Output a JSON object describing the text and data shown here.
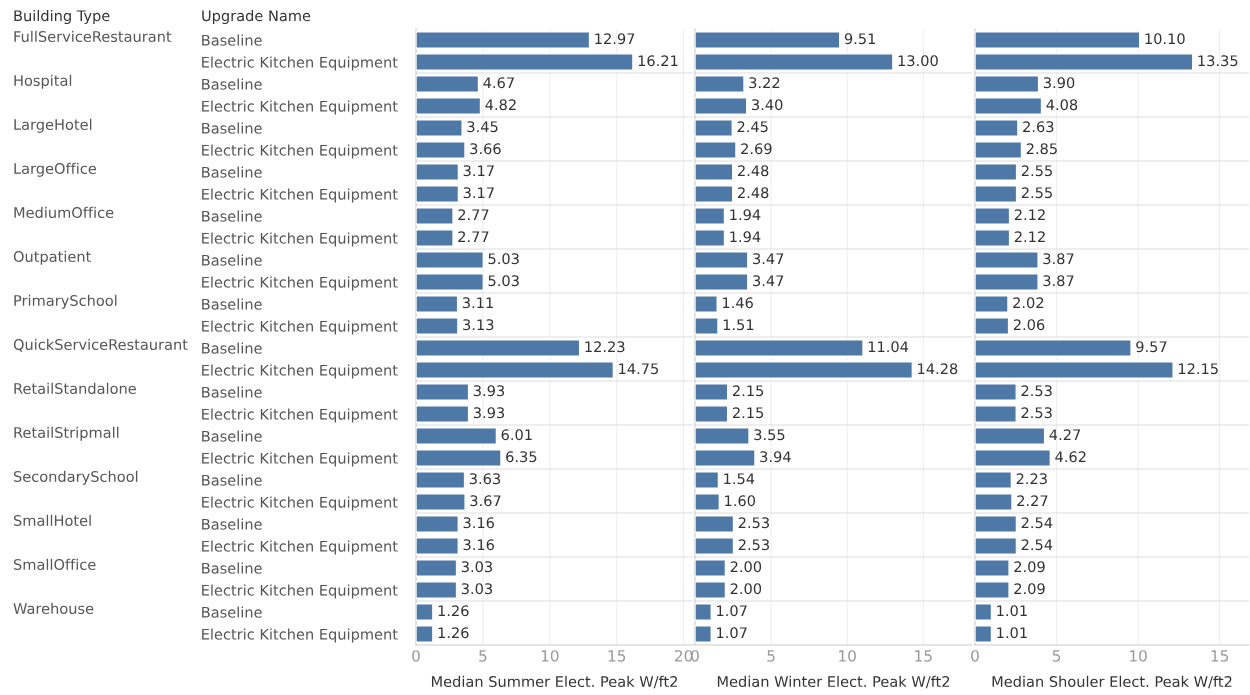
{
  "chart_data": [
    {
      "type": "bar",
      "orientation": "horizontal",
      "ylabel": "Upgrade Name",
      "xlabel": "Median Summer Elect. Peak W/ft2",
      "annotations": [
        "Building Type",
        "FullServiceRestaurant",
        "Hospital",
        "LargeHotel",
        "LargeOffice",
        "MediumOffice",
        "Outpatient",
        "PrimarySchool",
        "QuickServiceRestaurant",
        "RetailStandalone",
        "RetailStripmall",
        "SecondarySchool",
        "SmallHotel",
        "SmallOffice",
        "Warehouse"
      ],
      "categories": [
        "Baseline",
        "Electric Kitchen Equipment",
        "Baseline",
        "Electric Kitchen Equipment",
        "Baseline",
        "Electric Kitchen Equipment",
        "Baseline",
        "Electric Kitchen Equipment",
        "Baseline",
        "Electric Kitchen Equipment",
        "Baseline",
        "Electric Kitchen Equipment",
        "Baseline",
        "Electric Kitchen Equipment",
        "Baseline",
        "Electric Kitchen Equipment",
        "Baseline",
        "Electric Kitchen Equipment",
        "Baseline",
        "Electric Kitchen Equipment",
        "Baseline",
        "Electric Kitchen Equipment",
        "Baseline",
        "Electric Kitchen Equipment",
        "Baseline",
        "Electric Kitchen Equipment",
        "Baseline",
        "Electric Kitchen Equipment"
      ],
      "values": [
        12.97,
        16.21,
        4.67,
        4.82,
        3.45,
        3.66,
        3.17,
        3.17,
        2.77,
        2.77,
        5.03,
        5.03,
        3.11,
        3.13,
        12.23,
        14.75,
        3.93,
        3.93,
        6.01,
        6.35,
        3.63,
        3.67,
        3.16,
        3.16,
        3.03,
        3.03,
        1.26,
        1.26
      ],
      "value_labels": [
        "12.97",
        "16.21",
        "4.67",
        "4.82",
        "3.45",
        "3.66",
        "3.17",
        "3.17",
        "2.77",
        "2.77",
        "5.03",
        "5.03",
        "3.11",
        "3.13",
        "12.23",
        "14.75",
        "3.93",
        "3.93",
        "6.01",
        "6.35",
        "3.63",
        "3.67",
        "3.16",
        "3.16",
        "3.03",
        "3.03",
        "1.26",
        "1.26"
      ],
      "color": "#4e79a7",
      "xlim": [
        0,
        20.7
      ],
      "xticks": [
        0,
        5,
        10,
        15,
        20
      ],
      "grid": "x"
    },
    {
      "type": "bar",
      "orientation": "horizontal",
      "xlabel": "Median Winter Elect. Peak W/ft2",
      "tick_labels": "x",
      "values": [
        9.51,
        13.0,
        3.22,
        3.4,
        2.45,
        2.69,
        2.48,
        2.48,
        1.94,
        1.94,
        3.47,
        3.47,
        1.46,
        1.51,
        11.04,
        14.28,
        2.15,
        2.15,
        3.55,
        3.94,
        1.54,
        1.6,
        2.53,
        2.53,
        2.0,
        2.0,
        1.07,
        1.07
      ],
      "value_labels": [
        "9.51",
        "13.00",
        "3.22",
        "3.40",
        "2.45",
        "2.69",
        "2.48",
        "2.48",
        "1.94",
        "1.94",
        "3.47",
        "3.47",
        "1.46",
        "1.51",
        "11.04",
        "14.28",
        "2.15",
        "2.15",
        "3.55",
        "3.94",
        "1.54",
        "1.60",
        "2.53",
        "2.53",
        "2.00",
        "2.00",
        "1.07",
        "1.07"
      ],
      "color": "#4e79a7",
      "xlim": [
        0,
        18.2
      ],
      "xticks": [
        0,
        5,
        10,
        15
      ],
      "grid": "x"
    },
    {
      "type": "bar",
      "orientation": "horizontal",
      "xlabel": "Median Shouler Elect. Peak W/ft2",
      "tick_labels": "x",
      "values": [
        10.1,
        13.35,
        3.9,
        4.08,
        2.63,
        2.85,
        2.55,
        2.55,
        2.12,
        2.12,
        3.87,
        3.87,
        2.02,
        2.06,
        9.57,
        12.15,
        2.53,
        2.53,
        4.27,
        4.62,
        2.23,
        2.27,
        2.54,
        2.54,
        2.09,
        2.09,
        1.01,
        1.01
      ],
      "value_labels": [
        "10.10",
        "13.35",
        "3.90",
        "4.08",
        "2.63",
        "2.85",
        "2.55",
        "2.55",
        "2.12",
        "2.12",
        "3.87",
        "3.87",
        "2.02",
        "2.06",
        "9.57",
        "12.15",
        "2.53",
        "2.53",
        "4.27",
        "4.62",
        "2.23",
        "2.27",
        "2.54",
        "2.54",
        "2.09",
        "2.09",
        "1.01",
        "1.01"
      ],
      "color": "#4e79a7",
      "xlim": [
        0,
        16.8
      ],
      "xticks": [
        0,
        5,
        10,
        15
      ],
      "grid": "x"
    }
  ]
}
